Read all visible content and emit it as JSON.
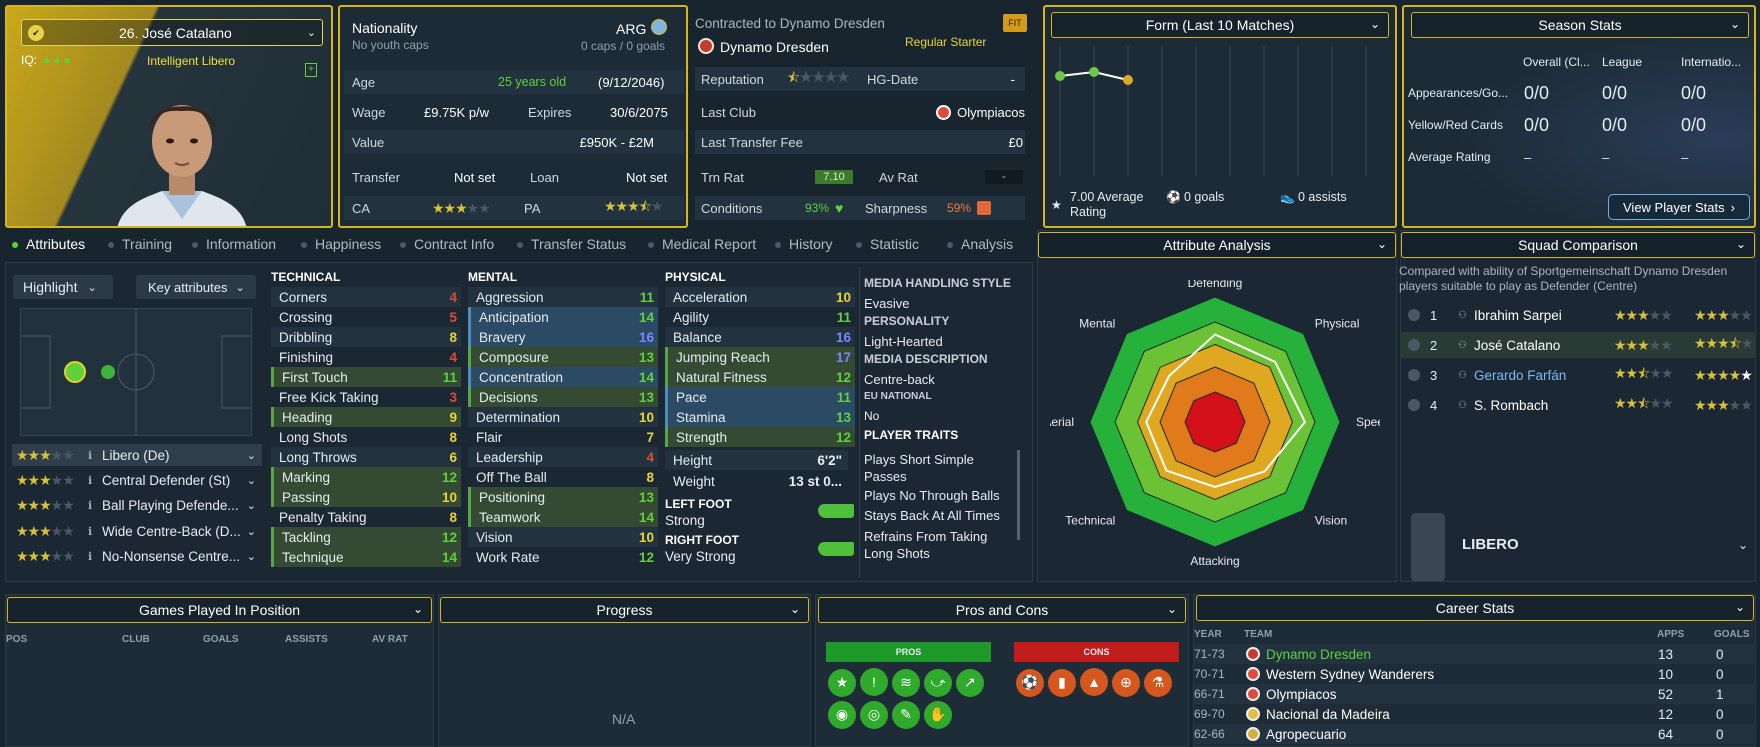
{
  "player": {
    "name": "26. José Catalano",
    "iq_label": "IQ:",
    "role_tag": "Intelligent Libero"
  },
  "nationality": {
    "label": "Nationality",
    "sub": "No youth caps",
    "code": "ARG",
    "caps": "0 caps / 0 goals"
  },
  "info": {
    "age_label": "Age",
    "age": "25 years old",
    "dob": "(9/12/2046)",
    "wage_label": "Wage",
    "wage": "£9.75K p/w",
    "expires_label": "Expires",
    "expires": "30/6/2075",
    "value_label": "Value",
    "value": "£950K - £2M",
    "transfer_label": "Transfer",
    "transfer": "Not set",
    "loan_label": "Loan",
    "loan": "Not set",
    "ca_label": "CA",
    "pa_label": "PA"
  },
  "contract": {
    "title": "Contracted to Dynamo Dresden",
    "fit": "FIT",
    "club": "Dynamo Dresden",
    "status": "Regular Starter",
    "reputation_label": "Reputation",
    "hg_label": "HG-Date",
    "hg": "-",
    "last_club_label": "Last Club",
    "last_club": "Olympiacos",
    "fee_label": "Last Transfer Fee",
    "fee": "£0",
    "trn_label": "Trn Rat",
    "trn": "7.10",
    "av_label": "Av Rat",
    "av": "-",
    "cond_label": "Conditions",
    "cond": "93%",
    "sharp_label": "Sharpness",
    "sharp": "59%"
  },
  "form": {
    "title": "Form (Last 10 Matches)",
    "avg": "7.00 Average Rating",
    "goals": "0 goals",
    "assists": "0 assists",
    "points": [
      7.0,
      7.1,
      6.9
    ]
  },
  "season": {
    "title": "Season Stats",
    "cols": [
      "Overall (Cl...",
      "League",
      "Internatio..."
    ],
    "rows": [
      {
        "label": "Appearances/Go...",
        "vals": [
          "0/0",
          "0/0",
          "0/0"
        ]
      },
      {
        "label": "Yellow/Red Cards",
        "vals": [
          "0/0",
          "0/0",
          "0/0"
        ]
      },
      {
        "label": "Average Rating",
        "vals": [
          "–",
          "–",
          "–"
        ]
      }
    ],
    "button": "View Player Stats"
  },
  "tabs": [
    "Attributes",
    "Training",
    "Information",
    "Happiness",
    "Contract Info",
    "Transfer Status",
    "Medical Report",
    "History",
    "Statistic",
    "Analysis"
  ],
  "controls": {
    "highlight": "Highlight",
    "key": "Key attributes"
  },
  "roles": [
    "Libero (De)",
    "Central Defender (St)",
    "Ball Playing Defende...",
    "Wide Centre-Back (D...",
    "No-Nonsense Centre..."
  ],
  "technical": {
    "title": "TECHNICAL",
    "items": [
      [
        "Corners",
        "4"
      ],
      [
        "Crossing",
        "5"
      ],
      [
        "Dribbling",
        "8"
      ],
      [
        "Finishing",
        "4"
      ],
      [
        "First Touch",
        "11"
      ],
      [
        "Free Kick Taking",
        "3"
      ],
      [
        "Heading",
        "9"
      ],
      [
        "Long Shots",
        "8"
      ],
      [
        "Long Throws",
        "6"
      ],
      [
        "Marking",
        "12"
      ],
      [
        "Passing",
        "10"
      ],
      [
        "Penalty Taking",
        "8"
      ],
      [
        "Tackling",
        "12"
      ],
      [
        "Technique",
        "14"
      ]
    ]
  },
  "mental": {
    "title": "MENTAL",
    "items": [
      [
        "Aggression",
        "11"
      ],
      [
        "Anticipation",
        "14"
      ],
      [
        "Bravery",
        "16"
      ],
      [
        "Composure",
        "13"
      ],
      [
        "Concentration",
        "14"
      ],
      [
        "Decisions",
        "13"
      ],
      [
        "Determination",
        "10"
      ],
      [
        "Flair",
        "7"
      ],
      [
        "Leadership",
        "4"
      ],
      [
        "Off The Ball",
        "8"
      ],
      [
        "Positioning",
        "13"
      ],
      [
        "Teamwork",
        "14"
      ],
      [
        "Vision",
        "10"
      ],
      [
        "Work Rate",
        "12"
      ]
    ]
  },
  "physical": {
    "title": "PHYSICAL",
    "items": [
      [
        "Acceleration",
        "10"
      ],
      [
        "Agility",
        "11"
      ],
      [
        "Balance",
        "16"
      ],
      [
        "Jumping Reach",
        "17"
      ],
      [
        "Natural Fitness",
        "12"
      ],
      [
        "Pace",
        "11"
      ],
      [
        "Stamina",
        "13"
      ],
      [
        "Strength",
        "12"
      ]
    ],
    "height_label": "Height",
    "height": "6'2\"",
    "weight_label": "Weight",
    "weight": "13 st 0...",
    "left_foot_label": "LEFT FOOT",
    "left_foot": "Strong",
    "right_foot_label": "RIGHT FOOT",
    "right_foot": "Very Strong"
  },
  "media": {
    "style_h": "MEDIA HANDLING STYLE",
    "style": "Evasive",
    "pers_h": "PERSONALITY",
    "pers": "Light-Hearted",
    "desc_h": "MEDIA DESCRIPTION",
    "desc": "Centre-back",
    "eu_h": "EU NATIONAL",
    "eu": "No",
    "traits_h": "PLAYER TRAITS",
    "traits": [
      "Plays Short Simple Passes",
      "Plays No Through Balls",
      "Stays Back At All Times",
      "Refrains From Taking Long Shots"
    ]
  },
  "analysis": {
    "title": "Attribute Analysis",
    "axes": [
      "Defending",
      "Physical",
      "Speed",
      "Vision",
      "Attacking",
      "Technical",
      "Aerial",
      "Mental"
    ],
    "values": [
      0.7,
      0.68,
      0.72,
      0.56,
      0.52,
      0.55,
      0.55,
      0.52
    ]
  },
  "squad": {
    "title": "Squad Comparison",
    "desc": "Compared with ability of Sportgemeinschaft Dynamo Dresden players suitable to play as Defender (Centre)",
    "rows": [
      {
        "rank": "1",
        "name": "Ibrahim Sarpei",
        "ca": 3,
        "pa": 3
      },
      {
        "rank": "2",
        "name": "José Catalano",
        "ca": 3,
        "pa": 3.5
      },
      {
        "rank": "3",
        "name": "Gerardo Farfán",
        "ca": 2.5,
        "pa": 5
      },
      {
        "rank": "4",
        "name": "S. Rombach",
        "ca": 2.5,
        "pa": 3
      }
    ],
    "role": "LIBERO"
  },
  "games": {
    "title": "Games Played In Position",
    "cols": [
      "POS",
      "CLUB",
      "GOALS",
      "ASSISTS",
      "AV RAT"
    ]
  },
  "progress": {
    "title": "Progress",
    "na": "N/A"
  },
  "proscons": {
    "title": "Pros and Cons",
    "pros": "PROS",
    "cons": "CONS"
  },
  "career": {
    "title": "Career Stats",
    "cols": [
      "YEAR",
      "TEAM",
      "APPS",
      "GOALS"
    ],
    "rows": [
      [
        "71-73",
        "Dynamo Dresden",
        "13",
        "0"
      ],
      [
        "70-71",
        "Western Sydney Wanderers",
        "10",
        "0"
      ],
      [
        "66-71",
        "Olympiacos",
        "52",
        "1"
      ],
      [
        "69-70",
        "Nacional da Madeira",
        "12",
        "0"
      ],
      [
        "62-66",
        "Agropecuario",
        "64",
        "0"
      ]
    ]
  },
  "colors": {
    "accent": "#d7b51e",
    "green": "#5fd13b",
    "red": "#e04a3a"
  }
}
